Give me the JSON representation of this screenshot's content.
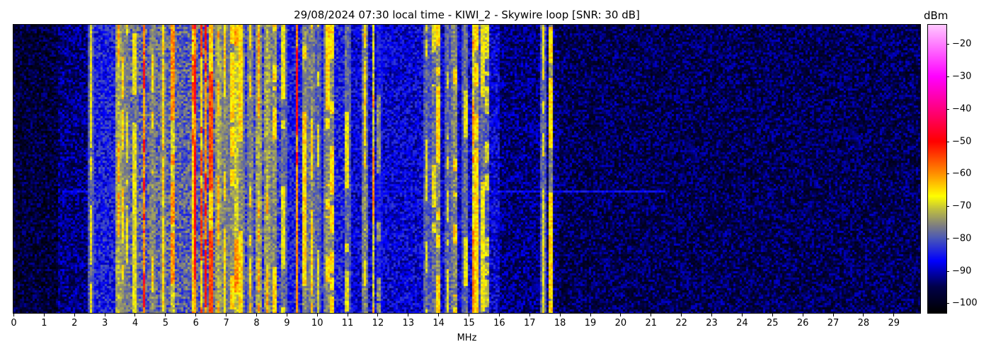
{
  "chart_data": {
    "type": "heatmap",
    "title": "29/08/2024 07:30 local time - KIWI_2 - Skywire loop [SNR: 30 dB]",
    "xlabel": "MHz",
    "ylabel": "",
    "xlim": [
      0,
      29.88
    ],
    "x_ticks": [
      "0",
      "1",
      "2",
      "3",
      "4",
      "5",
      "6",
      "7",
      "8",
      "9",
      "10",
      "11",
      "12",
      "13",
      "14",
      "15",
      "16",
      "17",
      "18",
      "19",
      "20",
      "21",
      "22",
      "23",
      "24",
      "25",
      "26",
      "27",
      "28",
      "29"
    ],
    "colorbar": {
      "label": "dBm",
      "range": [
        -103,
        -14
      ],
      "ticks": [
        "-20",
        "-30",
        "-40",
        "-50",
        "-60",
        "-70",
        "-80",
        "-90",
        "-100"
      ],
      "colormap_stops": [
        [
          -103,
          "#000000"
        ],
        [
          -95,
          "#00004a"
        ],
        [
          -87,
          "#0000ff"
        ],
        [
          -80,
          "#4a58b8"
        ],
        [
          -76,
          "#808080"
        ],
        [
          -71,
          "#c0c040"
        ],
        [
          -67,
          "#ffff00"
        ],
        [
          -60,
          "#ff9000"
        ],
        [
          -50,
          "#ff0000"
        ],
        [
          -40,
          "#ff0080"
        ],
        [
          -30,
          "#ff00ff"
        ],
        [
          -14,
          "#ffc8ff"
        ]
      ]
    },
    "background_level_dbm": [
      {
        "from_mhz": 0,
        "to_mhz": 1.5,
        "level": -97
      },
      {
        "from_mhz": 1.5,
        "to_mhz": 2.55,
        "level": -93
      },
      {
        "from_mhz": 2.55,
        "to_mhz": 3.4,
        "level": -85
      },
      {
        "from_mhz": 3.4,
        "to_mhz": 7.0,
        "level": -79
      },
      {
        "from_mhz": 7.0,
        "to_mhz": 9.0,
        "level": -82
      },
      {
        "from_mhz": 9.0,
        "to_mhz": 11.0,
        "level": -85
      },
      {
        "from_mhz": 11.0,
        "to_mhz": 16.0,
        "level": -88
      },
      {
        "from_mhz": 16.0,
        "to_mhz": 18.0,
        "level": -93
      },
      {
        "from_mhz": 18.0,
        "to_mhz": 29.88,
        "level": -95
      }
    ],
    "carriers_mhz_dbm": [
      [
        2.57,
        -68
      ],
      [
        3.45,
        -62
      ],
      [
        3.6,
        -65
      ],
      [
        3.75,
        -68
      ],
      [
        4.0,
        -68
      ],
      [
        4.3,
        -50
      ],
      [
        4.6,
        -65
      ],
      [
        4.95,
        -65
      ],
      [
        5.25,
        -60
      ],
      [
        5.9,
        -55
      ],
      [
        6.0,
        -50
      ],
      [
        6.2,
        -55
      ],
      [
        6.35,
        -50
      ],
      [
        6.5,
        -55
      ],
      [
        6.75,
        -62
      ],
      [
        6.95,
        -65
      ],
      [
        7.2,
        -65
      ],
      [
        7.35,
        -60
      ],
      [
        7.5,
        -65
      ],
      [
        7.8,
        -65
      ],
      [
        8.1,
        -62
      ],
      [
        8.35,
        -62
      ],
      [
        8.6,
        -65
      ],
      [
        8.9,
        -68
      ],
      [
        9.35,
        -50
      ],
      [
        9.6,
        -65
      ],
      [
        9.85,
        -65
      ],
      [
        10.05,
        -68
      ],
      [
        10.35,
        -65
      ],
      [
        10.5,
        -65
      ],
      [
        11.0,
        -68
      ],
      [
        11.6,
        -65
      ],
      [
        11.85,
        -60
      ],
      [
        12.05,
        -75
      ],
      [
        13.6,
        -68
      ],
      [
        13.85,
        -68
      ],
      [
        14.0,
        -65
      ],
      [
        14.3,
        -68
      ],
      [
        14.55,
        -65
      ],
      [
        14.9,
        -68
      ],
      [
        15.15,
        -60
      ],
      [
        15.25,
        -65
      ],
      [
        15.45,
        -68
      ],
      [
        15.6,
        -70
      ],
      [
        17.45,
        -68
      ],
      [
        17.7,
        -65
      ]
    ]
  }
}
